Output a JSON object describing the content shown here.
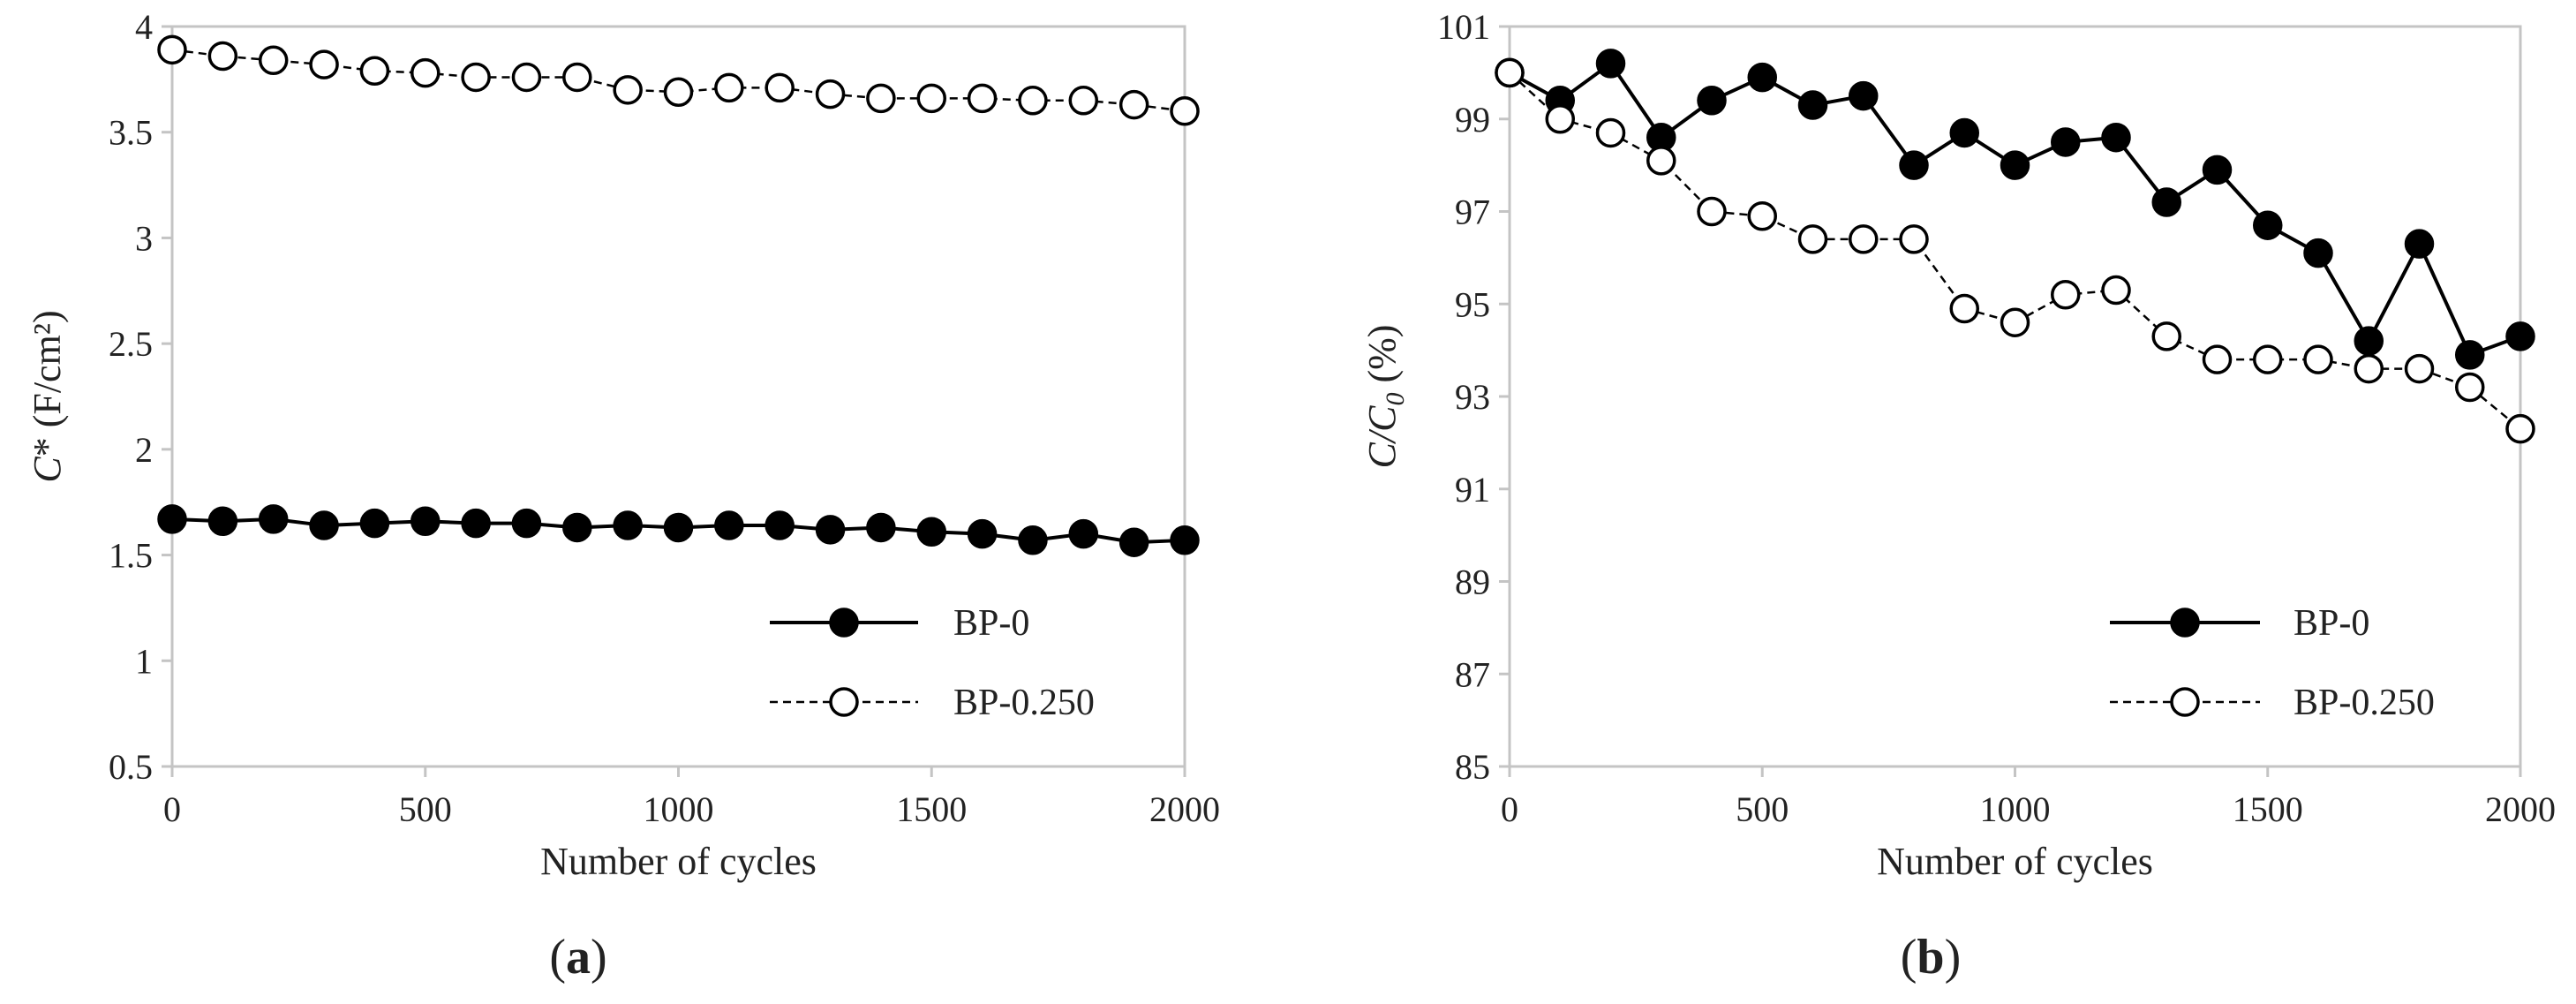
{
  "chart_data": [
    {
      "id": "a",
      "type": "line",
      "caption_letter": "a",
      "title": "",
      "xlabel": "Number of cycles",
      "ylabel_italic": "C",
      "ylabel_rest": "* (F/cm²)",
      "xlim": [
        0,
        2000
      ],
      "ylim": [
        0.5,
        4
      ],
      "xticks": [
        0,
        500,
        1000,
        1500,
        2000
      ],
      "yticks": [
        0.5,
        1,
        1.5,
        2,
        2.5,
        3,
        3.5,
        4
      ],
      "ytick_labels": [
        "0.5",
        "1",
        "1.5",
        "2",
        "2.5",
        "3",
        "3.5",
        "4"
      ],
      "grid": false,
      "legend_position": "bottom-right",
      "x": [
        0,
        100,
        200,
        300,
        400,
        500,
        600,
        700,
        800,
        900,
        1000,
        1100,
        1200,
        1300,
        1400,
        1500,
        1600,
        1700,
        1800,
        1900,
        2000
      ],
      "series": [
        {
          "name": "BP-0",
          "marker": "filled",
          "line": "solid",
          "values": [
            1.67,
            1.66,
            1.67,
            1.64,
            1.65,
            1.66,
            1.65,
            1.65,
            1.63,
            1.64,
            1.63,
            1.64,
            1.64,
            1.62,
            1.63,
            1.61,
            1.6,
            1.57,
            1.6,
            1.56,
            1.57
          ]
        },
        {
          "name": "BP-0.250",
          "marker": "open",
          "line": "dashed",
          "values": [
            3.89,
            3.86,
            3.84,
            3.82,
            3.79,
            3.78,
            3.76,
            3.76,
            3.76,
            3.7,
            3.69,
            3.71,
            3.71,
            3.68,
            3.66,
            3.66,
            3.66,
            3.65,
            3.65,
            3.63,
            3.6
          ]
        }
      ]
    },
    {
      "id": "b",
      "type": "line",
      "caption_letter": "b",
      "title": "",
      "xlabel": "Number of cycles",
      "ylabel_italic": "C/C",
      "ylabel_sub": "0",
      "ylabel_rest": " (%)",
      "xlim": [
        0,
        2000
      ],
      "ylim": [
        85,
        101
      ],
      "xticks": [
        0,
        500,
        1000,
        1500,
        2000
      ],
      "yticks": [
        85,
        87,
        89,
        91,
        93,
        95,
        97,
        99,
        101
      ],
      "ytick_labels": [
        "85",
        "87",
        "89",
        "91",
        "93",
        "95",
        "97",
        "99",
        "101"
      ],
      "grid": false,
      "legend_position": "bottom-right",
      "x": [
        0,
        100,
        200,
        300,
        400,
        500,
        600,
        700,
        800,
        900,
        1000,
        1100,
        1200,
        1300,
        1400,
        1500,
        1600,
        1700,
        1800,
        1900,
        2000
      ],
      "series": [
        {
          "name": "BP-0",
          "marker": "filled",
          "line": "solid",
          "values": [
            100.0,
            99.4,
            100.2,
            98.6,
            99.4,
            99.9,
            99.3,
            99.5,
            98.0,
            98.7,
            98.0,
            98.5,
            98.6,
            97.2,
            97.9,
            96.7,
            96.1,
            94.2,
            96.3,
            93.9,
            94.3
          ]
        },
        {
          "name": "BP-0.250",
          "marker": "open",
          "line": "dashed",
          "values": [
            100.0,
            99.0,
            98.7,
            98.1,
            97.0,
            96.9,
            96.4,
            96.4,
            96.4,
            94.9,
            94.6,
            95.2,
            95.3,
            94.3,
            93.8,
            93.8,
            93.8,
            93.6,
            93.6,
            93.2,
            92.3
          ]
        }
      ]
    }
  ]
}
